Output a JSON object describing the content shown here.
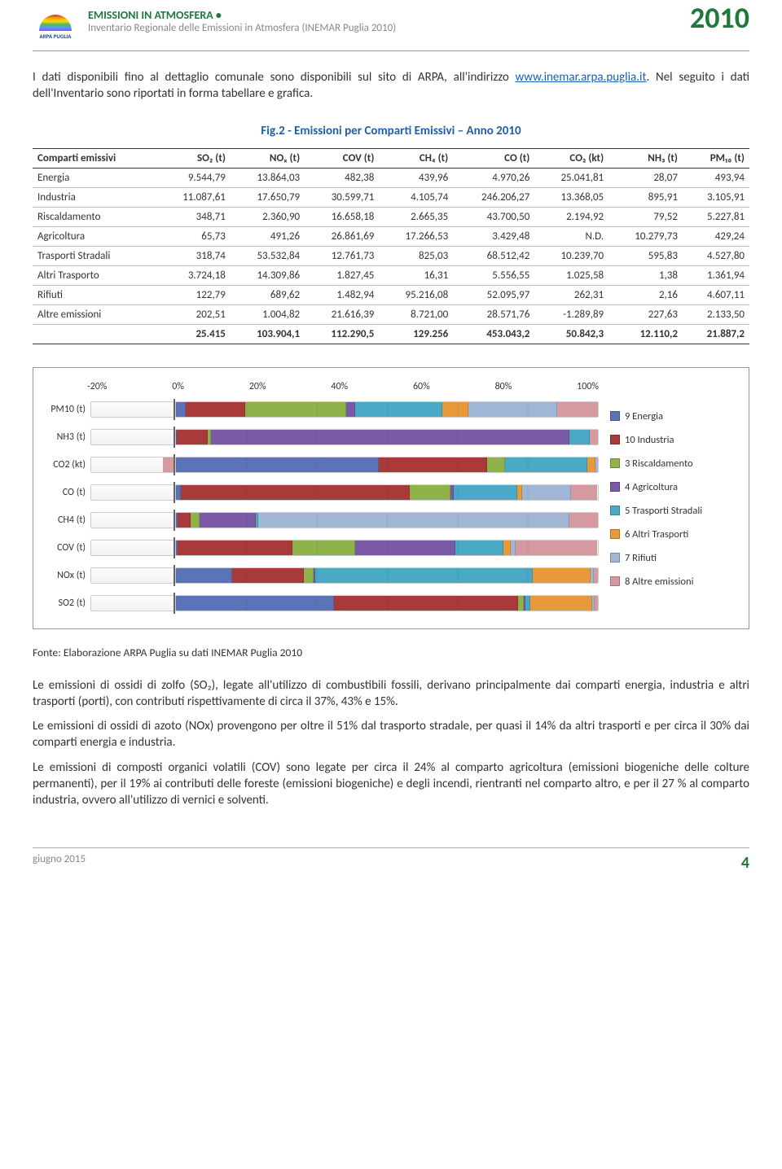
{
  "header": {
    "title": "EMISSIONI IN ATMOSFERA •",
    "subtitle": "Inventario Regionale delle Emissioni in Atmosfera (INEMAR Puglia 2010)",
    "year": "2010",
    "logo_label": "ARPA PUGLIA"
  },
  "intro": {
    "p1a": "I dati disponibili fino al dettaglio comunale sono disponibili sul sito di ARPA, all'indirizzo ",
    "link": "www.inemar.arpa.puglia.it",
    "p1b": ". Nel seguito i dati dell'Inventario sono riportati in forma tabellare e grafica."
  },
  "figure_title": "Fig.2 -  Emissioni per Comparti Emissivi – Anno 2010",
  "table": {
    "columns": [
      "Comparti emissivi",
      "SO₂ (t)",
      "NOₓ (t)",
      "COV (t)",
      "CH₄ (t)",
      "CO (t)",
      "CO₂ (kt)",
      "NH₃ (t)",
      "PM₁₀ (t)"
    ],
    "rows": [
      [
        "Energia",
        "9.544,79",
        "13.864,03",
        "482,38",
        "439,96",
        "4.970,26",
        "25.041,81",
        "28,07",
        "493,94"
      ],
      [
        "Industria",
        "11.087,61",
        "17.650,79",
        "30.599,71",
        "4.105,74",
        "246.206,27",
        "13.368,05",
        "895,91",
        "3.105,91"
      ],
      [
        "Riscaldamento",
        "348,71",
        "2.360,90",
        "16.658,18",
        "2.665,35",
        "43.700,50",
        "2.194,92",
        "79,52",
        "5.227,81"
      ],
      [
        "Agricoltura",
        "65,73",
        "491,26",
        "26.861,69",
        "17.266,53",
        "3.429,48",
        "N.D.",
        "10.279,73",
        "429,24"
      ],
      [
        "Trasporti Stradali",
        "318,74",
        "53.532,84",
        "12.761,73",
        "825,03",
        "68.512,42",
        "10.239,70",
        "595,83",
        "4.527,80"
      ],
      [
        "Altri Trasporto",
        "3.724,18",
        "14.309,86",
        "1.827,45",
        "16,31",
        "5.556,55",
        "1.025,58",
        "1,38",
        "1.361,94"
      ],
      [
        "Rifiuti",
        "122,79",
        "689,62",
        "1.482,94",
        "95.216,08",
        "52.095,97",
        "262,31",
        "2,16",
        "4.607,11"
      ],
      [
        "Altre emissioni",
        "202,51",
        "1.004,82",
        "21.616,39",
        "8.721,00",
        "28.571,76",
        "-1.289,89",
        "227,63",
        "2.133,50"
      ]
    ],
    "total": [
      "",
      "25.415",
      "103.904,1",
      "112.290,5",
      "129.256",
      "453.043,2",
      "50.842,3",
      "12.110,2",
      "21.887,2"
    ]
  },
  "chart": {
    "x_ticks": [
      "-20%",
      "0%",
      "20%",
      "40%",
      "60%",
      "80%",
      "100%"
    ],
    "rows": [
      "PM10 (t)",
      "NH3 (t)",
      "CO2 (kt)",
      "CO (t)",
      "CH4 (t)",
      "COV (t)",
      "NOx (t)",
      "SO2 (t)"
    ],
    "colors": {
      "energia": "#5b74b8",
      "industria": "#a83a3a",
      "riscald": "#8fb24a",
      "agric": "#7a5aa6",
      "trasp": "#4aa9c4",
      "altri": "#e89a3a",
      "rifiuti": "#9fb6d4",
      "altre": "#d49aa0"
    },
    "legend": [
      {
        "key": "energia",
        "label": "9 Energia"
      },
      {
        "key": "industria",
        "label": "10 Industria"
      },
      {
        "key": "riscald",
        "label": "3 Riscaldamento"
      },
      {
        "key": "agric",
        "label": "4 Agricoltura"
      },
      {
        "key": "trasp",
        "label": "5 Trasporti Stradali"
      },
      {
        "key": "altri",
        "label": "6 Altri Trasporti"
      },
      {
        "key": "rifiuti",
        "label": "7 Rifiuti"
      },
      {
        "key": "altre",
        "label": "8 Altre emissioni"
      }
    ],
    "series_pct": {
      "PM10 (t)": {
        "neg": 0,
        "pos": [
          2.3,
          14.2,
          23.9,
          2.0,
          20.7,
          6.2,
          21.0,
          9.7
        ]
      },
      "NH3 (t)": {
        "neg": 0,
        "pos": [
          0.2,
          7.4,
          0.7,
          84.9,
          4.9,
          0.0,
          0.0,
          1.9
        ]
      },
      "CO2 (kt)": {
        "neg": 2.5,
        "pos": [
          49.3,
          26.3,
          4.3,
          0.0,
          20.1,
          2.0,
          0.5,
          0.0
        ]
      },
      "CO (t)": {
        "neg": 0,
        "pos": [
          1.1,
          54.3,
          9.6,
          0.8,
          15.1,
          1.2,
          11.5,
          6.3
        ]
      },
      "CH4 (t)": {
        "neg": 0,
        "pos": [
          0.3,
          3.2,
          2.1,
          13.4,
          0.6,
          0.0,
          73.7,
          6.7
        ]
      },
      "COV (t)": {
        "neg": 0,
        "pos": [
          0.4,
          27.2,
          14.8,
          23.9,
          11.4,
          1.6,
          1.3,
          19.3
        ]
      },
      "NOx (t)": {
        "neg": 0,
        "pos": [
          13.3,
          17.0,
          2.3,
          0.5,
          51.5,
          13.8,
          0.7,
          1.0
        ]
      },
      "SO2 (t)": {
        "neg": 0,
        "pos": [
          37.6,
          43.6,
          1.4,
          0.3,
          1.3,
          14.7,
          0.5,
          0.8
        ]
      }
    }
  },
  "fonte": "Fonte: Elaborazione ARPA  Puglia su dati INEMAR Puglia 2010",
  "paragraphs": [
    "Le emissioni di ossidi di zolfo (SO₂), legate all'utilizzo di combustibili fossili, derivano principalmente dai comparti energia, industria e altri trasporti (porti), con contributi rispettivamente di circa il 37%, 43% e 15%.",
    "Le emissioni di ossidi di azoto (NOx) provengono per oltre il 51% dal trasporto stradale, per quasi il 14% da altri trasporti e per circa il 30% dai comparti energia e industria.",
    "Le emissioni di composti organici volatili (COV) sono legate per circa il 24% al comparto agricoltura (emissioni biogeniche delle colture permanenti), per il 19% ai contributi delle foreste (emissioni biogeniche) e degli incendi, rientranti nel comparto altro, e per il 27 % al comparto industria, ovvero all'utilizzo di vernici e solventi."
  ],
  "footer": {
    "date": "giugno 2015",
    "page": "4"
  }
}
